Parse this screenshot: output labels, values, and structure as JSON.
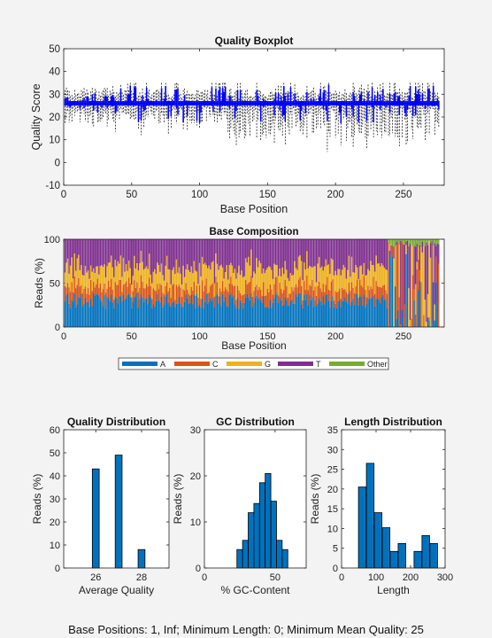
{
  "footer": "Base Positions: 1, Inf;   Minimum Length: 0;   Minimum Mean Quality: 25",
  "colors": {
    "A": "#0072BD",
    "C": "#D95319",
    "G": "#EDB120",
    "T": "#7E2F8E",
    "Other": "#77AC30",
    "box": "#0000FF",
    "bar": "#0072BD"
  },
  "chart_data": [
    {
      "type": "boxplot",
      "title": "Quality Boxplot",
      "xlabel": "Base Position",
      "ylabel": "Quality Score",
      "xlim": [
        0,
        280
      ],
      "ylim": [
        -10,
        50
      ],
      "xticks": [
        0,
        50,
        100,
        150,
        200,
        250
      ],
      "yticks": [
        -10,
        0,
        10,
        20,
        30,
        40,
        50
      ],
      "max_position": 276,
      "median": 26,
      "typical_box": [
        25,
        27
      ],
      "whisker_range_approx": [
        2,
        35
      ]
    },
    {
      "type": "stacked-bar",
      "title": "Base Composition",
      "xlabel": "Base Position",
      "ylabel": "Reads (%)",
      "xlim": [
        0,
        280
      ],
      "ylim": [
        0,
        100
      ],
      "xticks": [
        0,
        50,
        100,
        150,
        200,
        250
      ],
      "yticks": [
        0,
        50,
        100
      ],
      "positions": 276,
      "legend": [
        "A",
        "C",
        "G",
        "T",
        "Other"
      ],
      "legend_placement": "bottom",
      "series_approx_percent": {
        "A": 30,
        "C": 15,
        "G": 22,
        "T": 33,
        "Other": 0
      }
    },
    {
      "type": "bar",
      "title": "Quality Distribution",
      "xlabel": "Average Quality",
      "ylabel": "Reads (%)",
      "xlim": [
        24.6,
        29.2
      ],
      "ylim": [
        0,
        60
      ],
      "xticks": [
        26,
        28
      ],
      "yticks": [
        0,
        10,
        20,
        30,
        40,
        50,
        60
      ],
      "x": [
        26,
        27,
        28
      ],
      "values": [
        43,
        49,
        8
      ]
    },
    {
      "type": "bar",
      "title": "GC Distribution",
      "xlabel": "% GC-Content",
      "ylabel": "Reads (%)",
      "xlim": [
        0,
        72
      ],
      "ylim": [
        0,
        30
      ],
      "xticks": [
        0,
        50
      ],
      "yticks": [
        0,
        10,
        20,
        30
      ],
      "x": [
        25,
        29,
        33,
        37,
        41,
        45,
        49,
        53,
        57,
        61
      ],
      "values": [
        4,
        6,
        12,
        14,
        18.5,
        20.5,
        14.5,
        6,
        4,
        0
      ],
      "bar_width": 4
    },
    {
      "type": "bar",
      "title": "Length Distribution",
      "xlabel": "Length",
      "ylabel": "Reads (%)",
      "xlim": [
        0,
        300
      ],
      "ylim": [
        0,
        35
      ],
      "xticks": [
        0,
        100,
        200,
        300
      ],
      "yticks": [
        0,
        5,
        10,
        15,
        20,
        25,
        30,
        35
      ],
      "x": [
        60,
        83,
        106,
        129,
        152,
        175,
        198,
        221,
        244,
        267
      ],
      "values": [
        20.5,
        26.5,
        14,
        10.2,
        4.2,
        6.2,
        0,
        4.2,
        8.2,
        6.2
      ],
      "bar_width": 22
    }
  ]
}
